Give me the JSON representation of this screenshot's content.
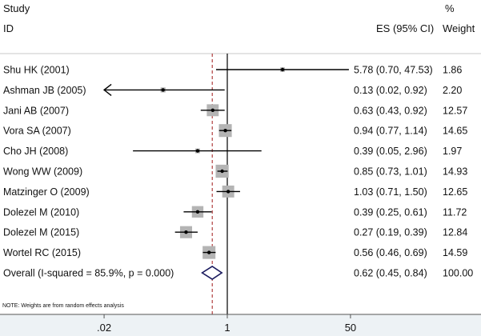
{
  "chart_data": {
    "type": "forest",
    "headers": {
      "study_line1": "Study",
      "study_line2": "ID",
      "es": "ES (95% CI)",
      "weight_line1": "%",
      "weight_line2": "Weight"
    },
    "studies": [
      {
        "label": "Shu HK (2001)",
        "es": 5.78,
        "lo": 0.7,
        "hi": 47.53,
        "es_text": "5.78 (0.70, 47.53)",
        "weight": 1.86,
        "weight_text": "1.86"
      },
      {
        "label": "Ashman JB (2005)",
        "es": 0.13,
        "lo": 0.02,
        "hi": 0.92,
        "es_text": "0.13 (0.02, 0.92)",
        "weight": 2.2,
        "weight_text": "2.20",
        "arrow_left": true
      },
      {
        "label": "Jani AB  (2007)",
        "es": 0.63,
        "lo": 0.43,
        "hi": 0.92,
        "es_text": "0.63 (0.43, 0.92)",
        "weight": 12.57,
        "weight_text": "12.57"
      },
      {
        "label": "Vora SA (2007)",
        "es": 0.94,
        "lo": 0.77,
        "hi": 1.14,
        "es_text": "0.94 (0.77, 1.14)",
        "weight": 14.65,
        "weight_text": "14.65"
      },
      {
        "label": "Cho JH (2008)",
        "es": 0.39,
        "lo": 0.05,
        "hi": 2.96,
        "es_text": "0.39 (0.05, 2.96)",
        "weight": 1.97,
        "weight_text": "1.97"
      },
      {
        "label": "Wong WW (2009)",
        "es": 0.85,
        "lo": 0.73,
        "hi": 1.01,
        "es_text": "0.85 (0.73, 1.01)",
        "weight": 14.93,
        "weight_text": "14.93"
      },
      {
        "label": "Matzinger O (2009)",
        "es": 1.03,
        "lo": 0.71,
        "hi": 1.5,
        "es_text": "1.03 (0.71, 1.50)",
        "weight": 12.65,
        "weight_text": "12.65"
      },
      {
        "label": "Dolezel M (2010)",
        "es": 0.39,
        "lo": 0.25,
        "hi": 0.61,
        "es_text": "0.39 (0.25, 0.61)",
        "weight": 11.72,
        "weight_text": "11.72"
      },
      {
        "label": "Dolezel M (2015)",
        "es": 0.27,
        "lo": 0.19,
        "hi": 0.39,
        "es_text": "0.27 (0.19, 0.39)",
        "weight": 12.84,
        "weight_text": "12.84"
      },
      {
        "label": "Wortel RC (2015)",
        "es": 0.56,
        "lo": 0.46,
        "hi": 0.69,
        "es_text": "0.56 (0.46, 0.69)",
        "weight": 14.59,
        "weight_text": "14.59"
      }
    ],
    "overall": {
      "label": "Overall  (I-squared = 85.9%, p = 0.000)",
      "es": 0.62,
      "lo": 0.45,
      "hi": 0.84,
      "es_text": "0.62 (0.45, 0.84)",
      "weight_text": "100.00"
    },
    "note": "NOTE: Weights are from random effects analysis",
    "x_axis": {
      "scale": "log",
      "ticks": [
        0.02,
        1,
        50
      ],
      "tick_labels": [
        ".02",
        "1",
        "50"
      ],
      "null_value": 1
    },
    "colors": {
      "box": "#b4b4b4",
      "diamond": "#1a1a5e",
      "dashed": "#a01818",
      "axis_bg": "#edf2f5",
      "line": "#000000"
    }
  }
}
